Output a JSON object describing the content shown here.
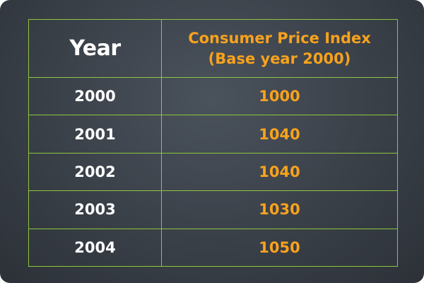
{
  "chart_data": {
    "type": "table",
    "columns": [
      "Year",
      "Consumer Price Index (Base year 2000)"
    ],
    "header": {
      "year": "Year",
      "cpi_line1": "Consumer Price Index",
      "cpi_line2": "(Base year 2000)"
    },
    "rows": [
      {
        "year": "2000",
        "cpi": 1000
      },
      {
        "year": "2001",
        "cpi": 1040
      },
      {
        "year": "2002",
        "cpi": 1040
      },
      {
        "year": "2003",
        "cpi": 1030
      },
      {
        "year": "2004",
        "cpi": 1050
      }
    ]
  },
  "colors": {
    "background": "#3a4048",
    "grid": "#8dc63f",
    "year_text": "#ffffff",
    "value_text": "#f7a21d"
  }
}
